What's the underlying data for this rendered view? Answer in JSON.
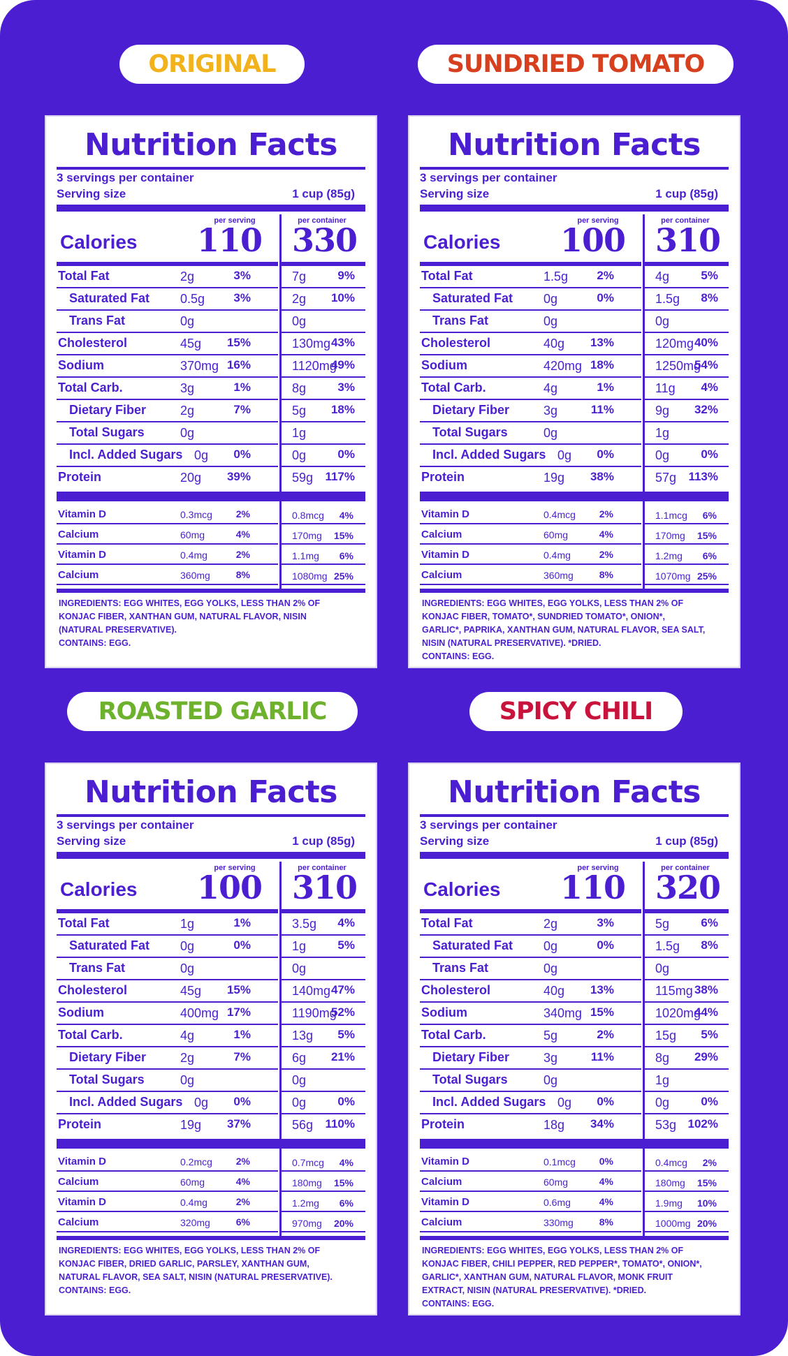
{
  "colors": {
    "background": "#4b1fd1",
    "ink": "#4b1fd1",
    "original": "#f2b21b",
    "sundried_tomato": "#d7401f",
    "roasted_garlic": "#6db12c",
    "spicy_chili": "#c8143c"
  },
  "common": {
    "title": "Nutrition Facts",
    "servings": "3 servings per container",
    "serving_size_label": "Serving size",
    "serving_size": "1 cup (85g)",
    "per_serving": "per serving",
    "per_container": "per container",
    "calories_label": "Calories",
    "labels": [
      "Total Fat",
      "Saturated Fat",
      "Trans Fat",
      "Cholesterol",
      "Sodium",
      "Total Carb.",
      "Dietary Fiber",
      "Total Sugars",
      "Incl. Added Sugars",
      "Protein"
    ],
    "vitamin_labels": [
      "Vitamin D",
      "Calcium",
      "Vitamin D",
      "Calcium"
    ]
  },
  "panels": [
    {
      "flavor": "ORIGINAL",
      "cal_serving": "110",
      "cal_container": "330",
      "rows": [
        [
          "2g",
          "3%",
          "7g",
          "9%"
        ],
        [
          "0.5g",
          "3%",
          "2g",
          "10%"
        ],
        [
          "0g",
          "",
          "0g",
          ""
        ],
        [
          "45g",
          "15%",
          "130mg",
          "43%"
        ],
        [
          "370mg",
          "16%",
          "1120mg",
          "49%"
        ],
        [
          "3g",
          "1%",
          "8g",
          "3%"
        ],
        [
          "2g",
          "7%",
          "5g",
          "18%"
        ],
        [
          "0g",
          "",
          "1g",
          ""
        ],
        [
          "0g",
          "0%",
          "0g",
          "0%"
        ],
        [
          "20g",
          "39%",
          "59g",
          "117%"
        ]
      ],
      "vitamins": [
        [
          "0.3mcg",
          "2%",
          "0.8mcg",
          "4%"
        ],
        [
          "60mg",
          "4%",
          "170mg",
          "15%"
        ],
        [
          "0.4mg",
          "2%",
          "1.1mg",
          "6%"
        ],
        [
          "360mg",
          "8%",
          "1080mg",
          "25%"
        ]
      ],
      "ingredients": [
        "Ingredients: Egg Whites, Egg Yolks, Less than 2% of",
        "Konjac Fiber, Xanthan Gum, Natural Flavor, Nisin",
        "(Natural Preservative).",
        "Contains: Egg."
      ]
    },
    {
      "flavor": "SUNDRIED TOMATO",
      "cal_serving": "100",
      "cal_container": "310",
      "rows": [
        [
          "1.5g",
          "2%",
          "4g",
          "5%"
        ],
        [
          "0g",
          "0%",
          "1.5g",
          "8%"
        ],
        [
          "0g",
          "",
          "0g",
          ""
        ],
        [
          "40g",
          "13%",
          "120mg",
          "40%"
        ],
        [
          "420mg",
          "18%",
          "1250mg",
          "54%"
        ],
        [
          "4g",
          "1%",
          "11g",
          "4%"
        ],
        [
          "3g",
          "11%",
          "9g",
          "32%"
        ],
        [
          "0g",
          "",
          "1g",
          ""
        ],
        [
          "0g",
          "0%",
          "0g",
          "0%"
        ],
        [
          "19g",
          "38%",
          "57g",
          "113%"
        ]
      ],
      "vitamins": [
        [
          "0.4mcg",
          "2%",
          "1.1mcg",
          "6%"
        ],
        [
          "60mg",
          "4%",
          "170mg",
          "15%"
        ],
        [
          "0.4mg",
          "2%",
          "1.2mg",
          "6%"
        ],
        [
          "360mg",
          "8%",
          "1070mg",
          "25%"
        ]
      ],
      "ingredients": [
        "Ingredients: Egg Whites, Egg Yolks, Less than 2% of",
        "Konjac Fiber, Tomato*, Sundried Tomato*, Onion*,",
        "Garlic*, Paprika, Xanthan Gum, Natural Flavor, Sea Salt,",
        "Nisin (Natural Preservative). *Dried.",
        "Contains: Egg."
      ]
    },
    {
      "flavor": "ROASTED GARLIC",
      "cal_serving": "100",
      "cal_container": "310",
      "rows": [
        [
          "1g",
          "1%",
          "3.5g",
          "4%"
        ],
        [
          "0g",
          "0%",
          "1g",
          "5%"
        ],
        [
          "0g",
          "",
          "0g",
          ""
        ],
        [
          "45g",
          "15%",
          "140mg",
          "47%"
        ],
        [
          "400mg",
          "17%",
          "1190mg",
          "52%"
        ],
        [
          "4g",
          "1%",
          "13g",
          "5%"
        ],
        [
          "2g",
          "7%",
          "6g",
          "21%"
        ],
        [
          "0g",
          "",
          "0g",
          ""
        ],
        [
          "0g",
          "0%",
          "0g",
          "0%"
        ],
        [
          "19g",
          "37%",
          "56g",
          "110%"
        ]
      ],
      "vitamins": [
        [
          "0.2mcg",
          "2%",
          "0.7mcg",
          "4%"
        ],
        [
          "60mg",
          "4%",
          "180mg",
          "15%"
        ],
        [
          "0.4mg",
          "2%",
          "1.2mg",
          "6%"
        ],
        [
          "320mg",
          "6%",
          "970mg",
          "20%"
        ]
      ],
      "ingredients": [
        "Ingredients: Egg Whites, Egg Yolks, Less than 2% of",
        "Konjac Fiber, Dried Garlic, Parsley, Xanthan Gum,",
        "Natural Flavor, Sea Salt, Nisin (Natural Preservative).",
        "Contains: Egg."
      ]
    },
    {
      "flavor": "SPICY CHILI",
      "cal_serving": "110",
      "cal_container": "320",
      "rows": [
        [
          "2g",
          "3%",
          "5g",
          "6%"
        ],
        [
          "0g",
          "0%",
          "1.5g",
          "8%"
        ],
        [
          "0g",
          "",
          "0g",
          ""
        ],
        [
          "40g",
          "13%",
          "115mg",
          "38%"
        ],
        [
          "340mg",
          "15%",
          "1020mg",
          "44%"
        ],
        [
          "5g",
          "2%",
          "15g",
          "5%"
        ],
        [
          "3g",
          "11%",
          "8g",
          "29%"
        ],
        [
          "0g",
          "",
          "1g",
          ""
        ],
        [
          "0g",
          "0%",
          "0g",
          "0%"
        ],
        [
          "18g",
          "34%",
          "53g",
          "102%"
        ]
      ],
      "vitamins": [
        [
          "0.1mcg",
          "0%",
          "0.4mcg",
          "2%"
        ],
        [
          "60mg",
          "4%",
          "180mg",
          "15%"
        ],
        [
          "0.6mg",
          "4%",
          "1.9mg",
          "10%"
        ],
        [
          "330mg",
          "8%",
          "1000mg",
          "20%"
        ]
      ],
      "ingredients": [
        "Ingredients: Egg Whites, Egg Yolks, Less than 2% of",
        "Konjac Fiber, Chili Pepper, Red Pepper*, Tomato*, Onion*,",
        "Garlic*, Xanthan Gum, Natural Flavor, Monk Fruit",
        "Extract, Nisin (Natural Preservative). *Dried.",
        "Contains: Egg."
      ]
    }
  ]
}
